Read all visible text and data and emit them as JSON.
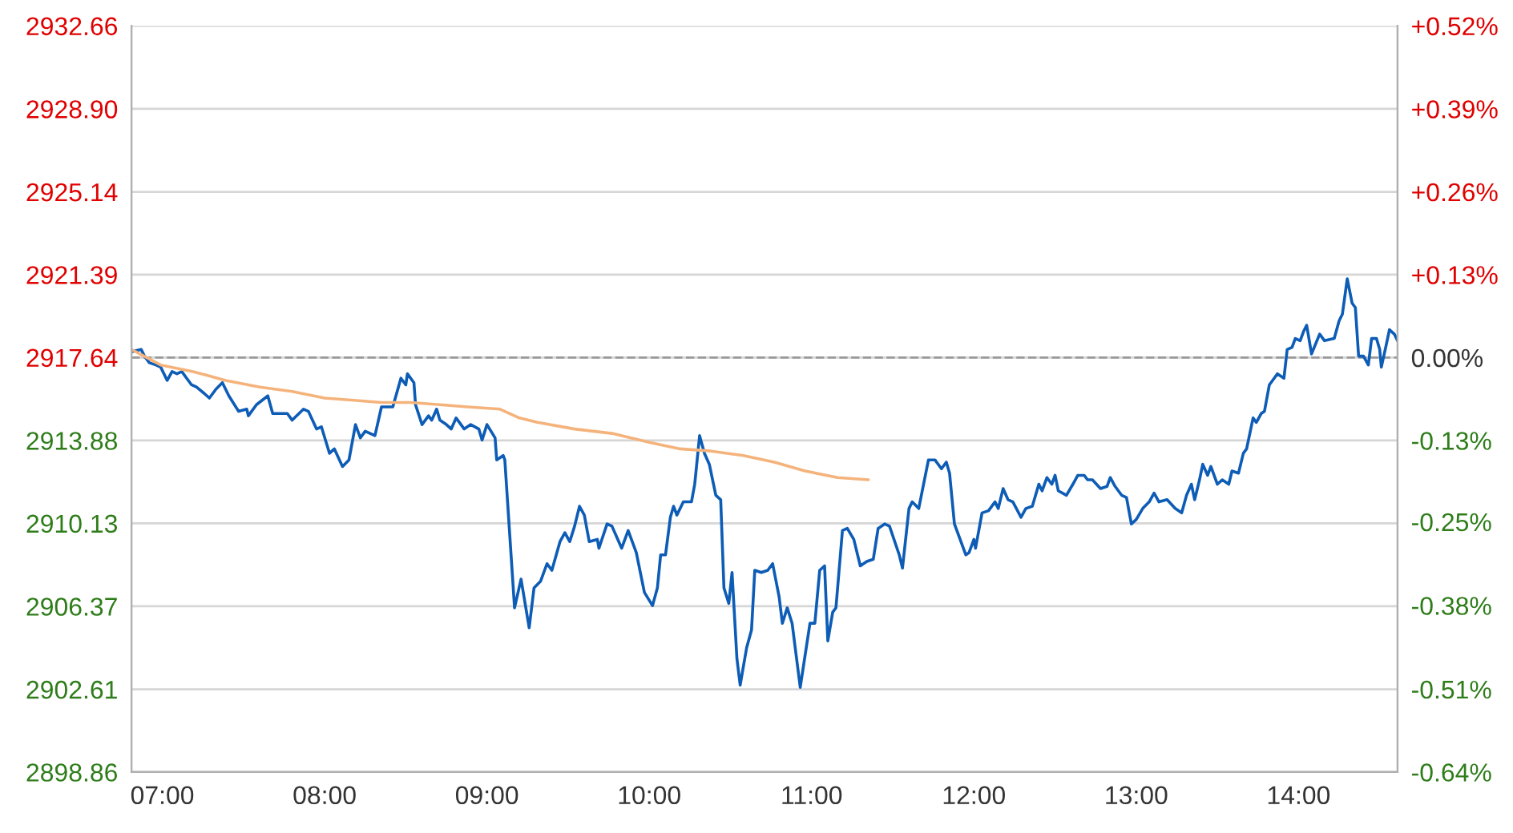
{
  "chart_data": {
    "type": "line",
    "series": [
      {
        "color": "#0d5cb6",
        "x": [
          6.81,
          6.87,
          6.89,
          6.92,
          6.96,
          6.99,
          7.03,
          7.06,
          7.09,
          7.12,
          7.15,
          7.18,
          7.21,
          7.26,
          7.29,
          7.33,
          7.37,
          7.41,
          7.47,
          7.52,
          7.53,
          7.58,
          7.65,
          7.68,
          7.77,
          7.8,
          7.87,
          7.9,
          7.95,
          7.98,
          8.03,
          8.06,
          8.11,
          8.15,
          8.19,
          8.22,
          8.25,
          8.31,
          8.35,
          8.42,
          8.47,
          8.5,
          8.51,
          8.55,
          8.56,
          8.6,
          8.64,
          8.66,
          8.69,
          8.71,
          8.75,
          8.78,
          8.81,
          8.86,
          8.9,
          8.95,
          8.97,
          9.0,
          9.05,
          9.06,
          9.1,
          9.11,
          9.17,
          9.21,
          9.26,
          9.29,
          9.33,
          9.37,
          9.4,
          9.45,
          9.48,
          9.51,
          9.54,
          9.57,
          9.6,
          9.63,
          9.68,
          9.69,
          9.74,
          9.77,
          9.83,
          9.87,
          9.92,
          9.97,
          10.02,
          10.05,
          10.07,
          10.1,
          10.13,
          10.15,
          10.17,
          10.21,
          10.26,
          10.28,
          10.31,
          10.34,
          10.37,
          10.41,
          10.44,
          10.46,
          10.49,
          10.51,
          10.54,
          10.56,
          10.6,
          10.63,
          10.65,
          10.69,
          10.73,
          10.76,
          10.8,
          10.82,
          10.85,
          10.88,
          10.93,
          10.99,
          11.02,
          11.05,
          11.08,
          11.1,
          11.13,
          11.15,
          11.19,
          11.22,
          11.26,
          11.3,
          11.34,
          11.38,
          11.41,
          11.45,
          11.48,
          11.54,
          11.56,
          11.6,
          11.62,
          11.66,
          11.72,
          11.76,
          11.8,
          11.83,
          11.85,
          11.88,
          11.91,
          11.95,
          11.97,
          12.0,
          12.01,
          12.05,
          12.09,
          12.13,
          12.15,
          12.18,
          12.21,
          12.24,
          12.29,
          12.32,
          12.36,
          12.4,
          12.42,
          12.45,
          12.48,
          12.5,
          12.52,
          12.57,
          12.61,
          12.64,
          12.68,
          12.7,
          12.73,
          12.78,
          12.82,
          12.84,
          12.87,
          12.91,
          12.94,
          12.97,
          13.0,
          13.04,
          13.08,
          13.11,
          13.14,
          13.19,
          13.24,
          13.28,
          13.31,
          13.34,
          13.36,
          13.39,
          13.41,
          13.44,
          13.46,
          13.5,
          13.53,
          13.57,
          13.59,
          13.63,
          13.66,
          13.68,
          13.72,
          13.74,
          13.77,
          13.79,
          13.82,
          13.85,
          13.87,
          13.91,
          13.93,
          13.96,
          13.98,
          14.01,
          14.03,
          14.05,
          14.08,
          14.13,
          14.16,
          14.22,
          14.25,
          14.27,
          14.3,
          14.33,
          14.35,
          14.37,
          14.4,
          14.43,
          14.45,
          14.48,
          14.5,
          14.51,
          14.54,
          14.56,
          14.59,
          14.61
        ],
        "values": [
          2917.9,
          2918.0,
          2917.7,
          2917.4,
          2917.3,
          2917.2,
          2916.6,
          2917.0,
          2916.9,
          2917.0,
          2916.7,
          2916.4,
          2916.3,
          2916.0,
          2915.8,
          2916.2,
          2916.5,
          2915.9,
          2915.2,
          2915.3,
          2915.0,
          2915.5,
          2915.9,
          2915.1,
          2915.1,
          2914.8,
          2915.3,
          2915.2,
          2914.4,
          2914.5,
          2913.3,
          2913.5,
          2912.7,
          2913.0,
          2914.6,
          2914.0,
          2914.3,
          2914.1,
          2915.4,
          2915.4,
          2916.7,
          2916.4,
          2916.9,
          2916.5,
          2915.5,
          2914.6,
          2915.0,
          2914.8,
          2915.3,
          2914.8,
          2914.6,
          2914.4,
          2914.9,
          2914.4,
          2914.6,
          2914.4,
          2913.9,
          2914.6,
          2914.0,
          2913.0,
          2913.2,
          2913.0,
          2906.3,
          2907.6,
          2905.4,
          2907.2,
          2907.5,
          2908.3,
          2908.0,
          2909.3,
          2909.7,
          2909.3,
          2910.0,
          2910.9,
          2910.5,
          2909.3,
          2909.4,
          2909.0,
          2910.1,
          2910.0,
          2909.0,
          2909.8,
          2908.8,
          2907.0,
          2906.4,
          2907.2,
          2908.7,
          2908.7,
          2910.4,
          2910.9,
          2910.5,
          2911.1,
          2911.1,
          2911.9,
          2914.1,
          2913.3,
          2912.8,
          2911.4,
          2911.2,
          2907.2,
          2906.5,
          2907.9,
          2904.0,
          2902.8,
          2904.5,
          2905.3,
          2908.0,
          2907.9,
          2908.0,
          2908.3,
          2906.8,
          2905.6,
          2906.3,
          2905.6,
          2902.7,
          2905.6,
          2905.6,
          2908.0,
          2908.2,
          2904.8,
          2906.1,
          2906.3,
          2909.8,
          2909.9,
          2909.4,
          2908.2,
          2908.4,
          2908.5,
          2909.9,
          2910.1,
          2910.0,
          2908.7,
          2908.1,
          2910.8,
          2911.1,
          2910.8,
          2913.0,
          2913.0,
          2912.6,
          2912.9,
          2912.4,
          2910.1,
          2909.5,
          2908.7,
          2908.8,
          2909.4,
          2909.0,
          2910.6,
          2910.7,
          2911.1,
          2910.8,
          2911.7,
          2911.2,
          2911.1,
          2910.4,
          2910.8,
          2910.9,
          2911.9,
          2911.6,
          2912.2,
          2911.9,
          2912.3,
          2911.6,
          2911.4,
          2911.9,
          2912.3,
          2912.3,
          2912.1,
          2912.1,
          2911.7,
          2911.8,
          2912.2,
          2911.8,
          2911.4,
          2911.3,
          2910.1,
          2910.3,
          2910.8,
          2911.1,
          2911.5,
          2911.1,
          2911.2,
          2910.8,
          2910.6,
          2911.4,
          2911.9,
          2911.2,
          2912.1,
          2912.8,
          2912.3,
          2912.7,
          2911.9,
          2912.1,
          2911.9,
          2912.5,
          2912.4,
          2913.3,
          2913.5,
          2914.9,
          2914.7,
          2915.1,
          2915.2,
          2916.4,
          2916.7,
          2916.9,
          2916.7,
          2918.0,
          2918.1,
          2918.5,
          2918.4,
          2918.8,
          2919.1,
          2917.8,
          2918.7,
          2918.4,
          2918.5,
          2919.3,
          2919.6,
          2921.2,
          2920.1,
          2919.9,
          2917.7,
          2917.7,
          2917.3,
          2918.5,
          2918.5,
          2918.0,
          2917.2,
          2918.2,
          2918.9,
          2918.7,
          2918.4
        ]
      },
      {
        "color": "#f5b37c",
        "x": [
          6.81,
          6.99,
          7.19,
          7.39,
          7.6,
          7.8,
          8.0,
          8.18,
          8.35,
          8.53,
          8.71,
          8.88,
          9.08,
          9.2,
          9.31,
          9.54,
          9.77,
          10.0,
          10.19,
          10.38,
          10.58,
          10.77,
          10.96,
          11.16,
          11.35
        ],
        "values": [
          2918.0,
          2917.3,
          2917.0,
          2916.6,
          2916.3,
          2916.1,
          2915.8,
          2915.7,
          2915.6,
          2915.6,
          2915.5,
          2915.4,
          2915.3,
          2914.9,
          2914.7,
          2914.4,
          2914.2,
          2913.8,
          2913.5,
          2913.4,
          2913.2,
          2912.9,
          2912.5,
          2912.2,
          2912.1
        ]
      }
    ],
    "xlim": [
      6.81,
      14.61
    ],
    "xticks": [
      {
        "value": 7,
        "label": "07:00"
      },
      {
        "value": 8,
        "label": "08:00"
      },
      {
        "value": 9,
        "label": "09:00"
      },
      {
        "value": 10,
        "label": "10:00"
      },
      {
        "value": 11,
        "label": "11:00"
      },
      {
        "value": 12,
        "label": "12:00"
      },
      {
        "value": 13,
        "label": "13:00"
      },
      {
        "value": 14,
        "label": "14:00"
      }
    ],
    "ylim": [
      2898.86,
      2932.66
    ],
    "yticks": [
      {
        "value": 2898.86,
        "label": "2898.86"
      },
      {
        "value": 2902.61,
        "label": "2902.61"
      },
      {
        "value": 2906.37,
        "label": "2906.37"
      },
      {
        "value": 2910.13,
        "label": "2910.13"
      },
      {
        "value": 2913.88,
        "label": "2913.88"
      },
      {
        "value": 2917.64,
        "label": "2917.64"
      },
      {
        "value": 2921.39,
        "label": "2921.39"
      },
      {
        "value": 2925.14,
        "label": "2925.14"
      },
      {
        "value": 2928.9,
        "label": "2928.90"
      },
      {
        "value": 2932.66,
        "label": "2932.66"
      }
    ],
    "y2lim": [
      -0.6436,
      0.5151
    ],
    "y2ticks": [
      {
        "value": -0.6436,
        "label": "-0.64%"
      },
      {
        "value": -0.5149,
        "label": "-0.51%"
      },
      {
        "value": -0.3849,
        "label": "-0.38%"
      },
      {
        "value": -0.2549,
        "label": "-0.25%"
      },
      {
        "value": -0.1287,
        "label": "-0.13%"
      },
      {
        "value": 0,
        "label": "0.00%"
      },
      {
        "value": 0.1287,
        "label": "+0.13%"
      },
      {
        "value": 0.2574,
        "label": "+0.26%"
      },
      {
        "value": 0.3862,
        "label": "+0.39%"
      },
      {
        "value": 0.5151,
        "label": "+0.52%"
      }
    ],
    "ref_lines": [
      {
        "axis": "y",
        "value": 2917.64,
        "color": "#999999",
        "line_style": "dashed"
      }
    ],
    "grid": "y",
    "line_style": "solid",
    "marker": "none"
  }
}
